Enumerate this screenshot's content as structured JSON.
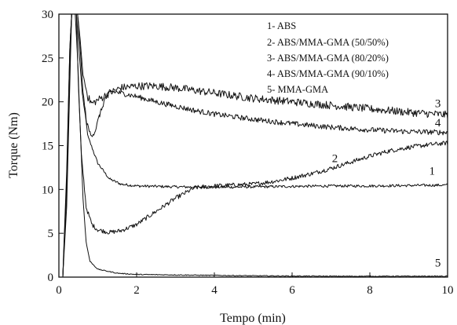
{
  "chart_data": {
    "type": "line",
    "title": "",
    "xlabel": "Tempo (min)",
    "ylabel": "Torque (Nm)",
    "xlim": [
      0,
      10
    ],
    "ylim": [
      0,
      30
    ],
    "x_ticks": [
      0,
      2,
      4,
      6,
      8,
      10
    ],
    "y_ticks": [
      0,
      5,
      10,
      15,
      20,
      25,
      30
    ],
    "grid": false,
    "legend_position": "top-right",
    "legend": [
      "1- ABS",
      "2- ABS/MMA-GMA (50/50%)",
      "3- ABS/MMA-GMA (80/20%)",
      "4- ABS/MMA-GMA (90/10%)",
      "5- MMA-GMA"
    ],
    "series": [
      {
        "label": "1",
        "name": "1- ABS",
        "noise": 0.15,
        "points": [
          [
            0,
            0
          ],
          [
            0.1,
            0
          ],
          [
            0.2,
            8
          ],
          [
            0.28,
            22
          ],
          [
            0.33,
            30
          ],
          [
            0.45,
            30
          ],
          [
            0.5,
            27
          ],
          [
            0.6,
            21
          ],
          [
            0.75,
            16
          ],
          [
            1.0,
            13
          ],
          [
            1.3,
            11.2
          ],
          [
            1.6,
            10.6
          ],
          [
            2.0,
            10.4
          ],
          [
            3,
            10.3
          ],
          [
            4,
            10.25
          ],
          [
            5,
            10.3
          ],
          [
            6,
            10.35
          ],
          [
            7,
            10.4
          ],
          [
            8,
            10.4
          ],
          [
            9,
            10.45
          ],
          [
            10,
            10.5
          ]
        ]
      },
      {
        "label": "2",
        "name": "2- ABS/MMA-GMA (50/50%)",
        "noise": 0.25,
        "points": [
          [
            0,
            0
          ],
          [
            0.1,
            0
          ],
          [
            0.2,
            10
          ],
          [
            0.28,
            25
          ],
          [
            0.33,
            30
          ],
          [
            0.45,
            30
          ],
          [
            0.5,
            22
          ],
          [
            0.58,
            14
          ],
          [
            0.7,
            8
          ],
          [
            0.85,
            6
          ],
          [
            1.0,
            5.4
          ],
          [
            1.3,
            5.1
          ],
          [
            1.6,
            5.3
          ],
          [
            2.0,
            6
          ],
          [
            2.5,
            7.5
          ],
          [
            3.0,
            9
          ],
          [
            3.5,
            10.2
          ],
          [
            4.0,
            10.4
          ],
          [
            4.5,
            10.5
          ],
          [
            5,
            10.6
          ],
          [
            5.5,
            10.9
          ],
          [
            6,
            11.3
          ],
          [
            6.5,
            11.8
          ],
          [
            7,
            12.4
          ],
          [
            7.5,
            13.1
          ],
          [
            8,
            13.8
          ],
          [
            8.5,
            14.4
          ],
          [
            9,
            14.8
          ],
          [
            9.5,
            15.1
          ],
          [
            10,
            15.3
          ]
        ]
      },
      {
        "label": "3",
        "name": "3- ABS/MMA-GMA (80/20%)",
        "noise": 0.45,
        "points": [
          [
            0,
            0
          ],
          [
            0.1,
            0
          ],
          [
            0.2,
            12
          ],
          [
            0.28,
            26
          ],
          [
            0.33,
            30
          ],
          [
            0.48,
            30
          ],
          [
            0.55,
            27
          ],
          [
            0.62,
            23
          ],
          [
            0.75,
            20.5
          ],
          [
            0.85,
            19.8
          ],
          [
            1.0,
            20.2
          ],
          [
            1.3,
            21
          ],
          [
            1.6,
            21.6
          ],
          [
            2,
            21.8
          ],
          [
            2.5,
            21.8
          ],
          [
            3,
            21.6
          ],
          [
            3.5,
            21.3
          ],
          [
            4,
            21
          ],
          [
            4.5,
            20.7
          ],
          [
            5,
            20.4
          ],
          [
            6,
            20
          ],
          [
            7,
            19.6
          ],
          [
            8,
            19.2
          ],
          [
            9,
            18.8
          ],
          [
            10,
            18.5
          ]
        ]
      },
      {
        "label": "4",
        "name": "4- ABS/MMA-GMA (90/10%)",
        "noise": 0.3,
        "points": [
          [
            0,
            0
          ],
          [
            0.1,
            0
          ],
          [
            0.2,
            11
          ],
          [
            0.28,
            26
          ],
          [
            0.33,
            30
          ],
          [
            0.48,
            30
          ],
          [
            0.55,
            26
          ],
          [
            0.62,
            21
          ],
          [
            0.72,
            17.5
          ],
          [
            0.82,
            16.2
          ],
          [
            0.92,
            16.5
          ],
          [
            1.05,
            18.5
          ],
          [
            1.2,
            20.5
          ],
          [
            1.35,
            21.2
          ],
          [
            1.6,
            21
          ],
          [
            2,
            20.6
          ],
          [
            2.5,
            20
          ],
          [
            3,
            19.5
          ],
          [
            3.5,
            19
          ],
          [
            4,
            18.6
          ],
          [
            5,
            18
          ],
          [
            6,
            17.5
          ],
          [
            7,
            17.1
          ],
          [
            8,
            16.8
          ],
          [
            9,
            16.6
          ],
          [
            10,
            16.5
          ]
        ]
      },
      {
        "label": "5",
        "name": "5- MMA-GMA",
        "noise": 0.05,
        "points": [
          [
            0,
            0
          ],
          [
            0.1,
            0
          ],
          [
            0.2,
            10
          ],
          [
            0.28,
            25
          ],
          [
            0.33,
            30
          ],
          [
            0.42,
            30
          ],
          [
            0.48,
            25
          ],
          [
            0.55,
            17
          ],
          [
            0.62,
            9
          ],
          [
            0.7,
            4
          ],
          [
            0.8,
            1.8
          ],
          [
            1,
            0.9
          ],
          [
            1.5,
            0.45
          ],
          [
            2,
            0.3
          ],
          [
            3,
            0.25
          ],
          [
            4,
            0.2
          ],
          [
            5,
            0.15
          ],
          [
            6,
            0.12
          ],
          [
            7,
            0.1
          ],
          [
            8,
            0.1
          ],
          [
            9,
            0.1
          ],
          [
            10,
            0.1
          ]
        ]
      }
    ],
    "curve_labels": [
      {
        "text": "1",
        "x": 9.6,
        "y": 11.7
      },
      {
        "text": "2",
        "x": 7.1,
        "y": 13.1
      },
      {
        "text": "3",
        "x": 9.75,
        "y": 19.4
      },
      {
        "text": "4",
        "x": 9.75,
        "y": 17.2
      },
      {
        "text": "5",
        "x": 9.75,
        "y": 1.2
      }
    ]
  }
}
